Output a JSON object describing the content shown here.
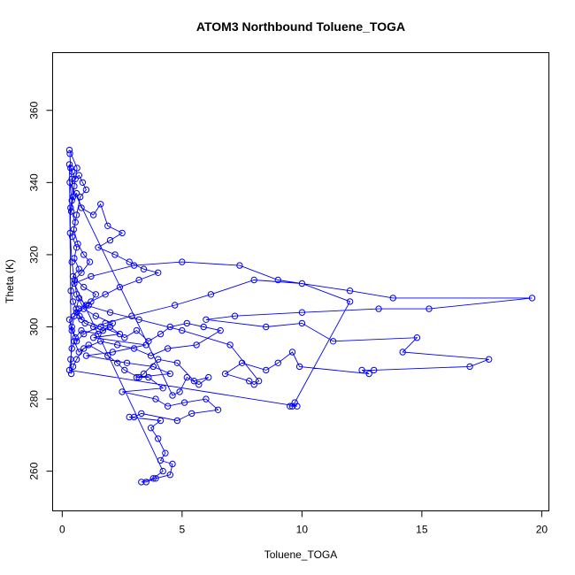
{
  "chart_data": {
    "type": "scatter",
    "title": "ATOM3 Northbound Toluene_TOGA",
    "xlabel": "Toluene_TOGA",
    "ylabel": "Theta (K)",
    "xlim": [
      -0.4,
      20.3
    ],
    "ylim": [
      249,
      376
    ],
    "x_ticks": [
      0,
      5,
      10,
      15,
      20
    ],
    "y_ticks": [
      260,
      280,
      300,
      320,
      340,
      360
    ],
    "grid": false,
    "legend": "none",
    "series": [
      {
        "color": "#0000ff",
        "marker": "open-circle",
        "connected": true,
        "points": [
          [
            0.32,
            348
          ],
          [
            0.35,
            344
          ],
          [
            0.4,
            341
          ],
          [
            0.45,
            336
          ],
          [
            0.38,
            332
          ],
          [
            0.55,
            329
          ],
          [
            0.42,
            325
          ],
          [
            0.6,
            322
          ],
          [
            0.5,
            319
          ],
          [
            0.7,
            316
          ],
          [
            0.45,
            314
          ],
          [
            0.9,
            311
          ],
          [
            1.4,
            309
          ],
          [
            1.1,
            306
          ],
          [
            0.6,
            304
          ],
          [
            0.8,
            302
          ],
          [
            1.6,
            300
          ],
          [
            2.4,
            298
          ],
          [
            1.3,
            297
          ],
          [
            3.5,
            295
          ],
          [
            2.1,
            293
          ],
          [
            1.0,
            292
          ],
          [
            2.7,
            290
          ],
          [
            3.8,
            289
          ],
          [
            4.5,
            287
          ],
          [
            3.1,
            286
          ],
          [
            3.6,
            286
          ],
          [
            4.2,
            283
          ],
          [
            2.5,
            282
          ],
          [
            3.9,
            280
          ],
          [
            4.4,
            278
          ],
          [
            5.1,
            279
          ],
          [
            6.0,
            280
          ],
          [
            6.5,
            277
          ],
          [
            5.4,
            276
          ],
          [
            4.8,
            274
          ],
          [
            3.3,
            276
          ],
          [
            3.0,
            275
          ],
          [
            2.8,
            275
          ],
          [
            4.1,
            274
          ],
          [
            3.7,
            272
          ],
          [
            4.0,
            269
          ],
          [
            4.3,
            265
          ],
          [
            4.1,
            263
          ],
          [
            4.6,
            262
          ],
          [
            4.5,
            259
          ],
          [
            3.9,
            258
          ],
          [
            3.5,
            257
          ],
          [
            3.3,
            257
          ],
          [
            3.8,
            258
          ],
          [
            4.2,
            260
          ],
          [
            0.5,
            312
          ],
          [
            1.2,
            314
          ],
          [
            3.0,
            317
          ],
          [
            5.0,
            318
          ],
          [
            7.4,
            317
          ],
          [
            9.0,
            313
          ],
          [
            12.0,
            310
          ],
          [
            13.8,
            308
          ],
          [
            19.6,
            308
          ],
          [
            15.3,
            305
          ],
          [
            13.2,
            305
          ],
          [
            10.0,
            304
          ],
          [
            7.2,
            303
          ],
          [
            6.0,
            302
          ],
          [
            8.5,
            300
          ],
          [
            10.0,
            301
          ],
          [
            11.3,
            296
          ],
          [
            14.8,
            297
          ],
          [
            14.2,
            293
          ],
          [
            17.8,
            291
          ],
          [
            17.0,
            289
          ],
          [
            13.0,
            288
          ],
          [
            12.5,
            288
          ],
          [
            12.8,
            287
          ],
          [
            9.9,
            289
          ],
          [
            9.6,
            293
          ],
          [
            9.0,
            290
          ],
          [
            8.5,
            288
          ],
          [
            7.5,
            290
          ],
          [
            6.8,
            287
          ],
          [
            7.8,
            285
          ],
          [
            8.0,
            284
          ],
          [
            8.2,
            285
          ],
          [
            7.0,
            295
          ],
          [
            5.0,
            299
          ],
          [
            3.2,
            302
          ],
          [
            2.0,
            304
          ],
          [
            1.0,
            306
          ],
          [
            0.7,
            308
          ],
          [
            0.4,
            300
          ],
          [
            0.6,
            296
          ],
          [
            0.9,
            298
          ],
          [
            1.8,
            301
          ],
          [
            2.9,
            303
          ],
          [
            4.7,
            306
          ],
          [
            6.2,
            309
          ],
          [
            8.0,
            313
          ],
          [
            10.0,
            312
          ],
          [
            12.0,
            307
          ],
          [
            9.7,
            279
          ],
          [
            9.6,
            278
          ],
          [
            9.5,
            278
          ],
          [
            9.8,
            278
          ],
          [
            0.3,
            288
          ],
          [
            0.35,
            291
          ],
          [
            0.4,
            294
          ],
          [
            0.5,
            296
          ],
          [
            0.7,
            293
          ],
          [
            1.1,
            295
          ],
          [
            1.9,
            292
          ],
          [
            2.3,
            290
          ],
          [
            2.6,
            288
          ],
          [
            3.2,
            286
          ],
          [
            3.4,
            287
          ],
          [
            4.0,
            291
          ],
          [
            4.8,
            290
          ],
          [
            5.5,
            285
          ],
          [
            6.1,
            286
          ],
          [
            5.7,
            284
          ],
          [
            5.2,
            286
          ],
          [
            4.9,
            282
          ],
          [
            4.6,
            281
          ],
          [
            0.32,
            340
          ],
          [
            0.4,
            335
          ],
          [
            0.6,
            337
          ],
          [
            0.8,
            333
          ],
          [
            1.3,
            331
          ],
          [
            1.6,
            334
          ],
          [
            1.9,
            328
          ],
          [
            2.5,
            326
          ],
          [
            2.0,
            324
          ],
          [
            1.5,
            322
          ],
          [
            2.2,
            320
          ],
          [
            2.8,
            318
          ],
          [
            3.4,
            316
          ],
          [
            4.0,
            315
          ],
          [
            3.2,
            313
          ],
          [
            2.4,
            311
          ],
          [
            1.8,
            309
          ],
          [
            1.2,
            307
          ],
          [
            0.7,
            305
          ],
          [
            0.5,
            303
          ],
          [
            0.3,
            302
          ],
          [
            0.4,
            299
          ],
          [
            0.55,
            297
          ],
          [
            0.8,
            299
          ],
          [
            1.5,
            298
          ],
          [
            2.0,
            300
          ],
          [
            2.6,
            297
          ],
          [
            3.1,
            299
          ],
          [
            3.6,
            296
          ],
          [
            4.1,
            298
          ],
          [
            4.5,
            300
          ],
          [
            5.2,
            301
          ],
          [
            5.9,
            300
          ],
          [
            6.6,
            299
          ],
          [
            5.6,
            295
          ],
          [
            4.4,
            294
          ],
          [
            3.7,
            292
          ],
          [
            3.0,
            294
          ],
          [
            2.3,
            295
          ],
          [
            1.6,
            296
          ],
          [
            0.9,
            294
          ],
          [
            0.6,
            291
          ],
          [
            0.45,
            289
          ],
          [
            0.38,
            287
          ],
          [
            0.3,
            345
          ],
          [
            0.42,
            343
          ],
          [
            0.55,
            341
          ],
          [
            0.7,
            342
          ],
          [
            0.85,
            340
          ],
          [
            1.0,
            338
          ],
          [
            0.75,
            336
          ],
          [
            0.6,
            331
          ],
          [
            0.48,
            327
          ],
          [
            0.65,
            323
          ],
          [
            0.9,
            320
          ],
          [
            1.15,
            318
          ],
          [
            0.8,
            315
          ],
          [
            0.52,
            313
          ],
          [
            0.36,
            310
          ],
          [
            0.45,
            307
          ],
          [
            0.58,
            305
          ],
          [
            0.72,
            303
          ],
          [
            0.95,
            301
          ],
          [
            1.3,
            300
          ],
          [
            1.7,
            299
          ],
          [
            2.1,
            301
          ],
          [
            1.4,
            303
          ],
          [
            0.9,
            305
          ],
          [
            0.6,
            309
          ],
          [
            0.4,
            318
          ],
          [
            0.33,
            326
          ],
          [
            0.35,
            333
          ],
          [
            0.5,
            339
          ],
          [
            0.62,
            344
          ],
          [
            0.3,
            349
          ]
        ]
      }
    ]
  }
}
